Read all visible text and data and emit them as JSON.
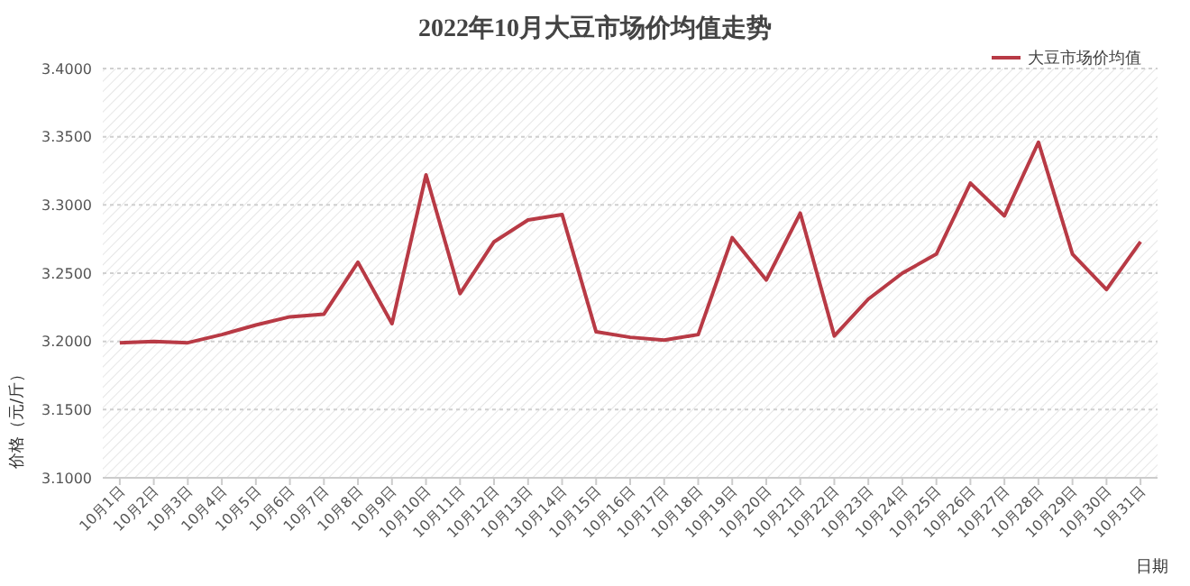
{
  "chart_data": {
    "type": "line",
    "title": "2022年10月大豆市场价均值走势",
    "xlabel": "日期",
    "ylabel": "价格（元/斤）",
    "categories": [
      "10月1日",
      "10月2日",
      "10月3日",
      "10月4日",
      "10月5日",
      "10月6日",
      "10月7日",
      "10月8日",
      "10月9日",
      "10月10日",
      "10月11日",
      "10月12日",
      "10月13日",
      "10月14日",
      "10月15日",
      "10月16日",
      "10月17日",
      "10月18日",
      "10月19日",
      "10月20日",
      "10月21日",
      "10月22日",
      "10月23日",
      "10月24日",
      "10月25日",
      "10月26日",
      "10月27日",
      "10月28日",
      "10月29日",
      "10月30日",
      "10月31日"
    ],
    "series": [
      {
        "name": "大豆市场价均值",
        "color": "#b83a45",
        "values": [
          3.199,
          3.2,
          3.199,
          3.205,
          3.212,
          3.218,
          3.22,
          3.258,
          3.213,
          3.322,
          3.235,
          3.273,
          3.289,
          3.293,
          3.207,
          3.203,
          3.201,
          3.205,
          3.276,
          3.245,
          3.294,
          3.204,
          3.231,
          3.25,
          3.264,
          3.316,
          3.292,
          3.346,
          3.264,
          3.238,
          3.273
        ]
      }
    ],
    "ylim": [
      3.1,
      3.4
    ],
    "yticks": [
      {
        "value": 3.1,
        "label": "3.1000"
      },
      {
        "value": 3.15,
        "label": "3.1500"
      },
      {
        "value": 3.2,
        "label": "3.2000"
      },
      {
        "value": 3.25,
        "label": "3.2500"
      },
      {
        "value": 3.3,
        "label": "3.3000"
      },
      {
        "value": 3.35,
        "label": "3.3500"
      },
      {
        "value": 3.4,
        "label": "3.4000"
      }
    ],
    "grid": "y",
    "legend": "top right",
    "marker": "none",
    "line_style": "solid"
  }
}
